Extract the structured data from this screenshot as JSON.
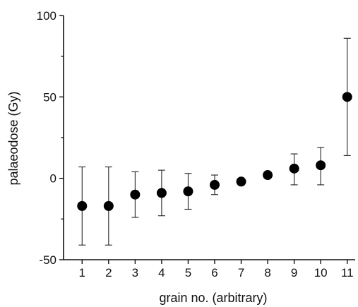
{
  "chart_data": {
    "type": "scatter",
    "title": "",
    "xlabel": "grain no. (arbitrary)",
    "ylabel": "palaeodose (Gy)",
    "xlim": [
      0.3,
      11.3
    ],
    "ylim": [
      -50,
      100
    ],
    "x_ticks": [
      1,
      2,
      3,
      4,
      5,
      6,
      7,
      8,
      9,
      10,
      11
    ],
    "y_ticks": [
      -50,
      0,
      50,
      100
    ],
    "grid": false,
    "legend": "none",
    "marker_color": "#000000",
    "points": [
      {
        "x": 1,
        "y": -17,
        "err_low": -41,
        "err_high": 7
      },
      {
        "x": 2,
        "y": -17,
        "err_low": -41,
        "err_high": 7
      },
      {
        "x": 3,
        "y": -10,
        "err_low": -24,
        "err_high": 4
      },
      {
        "x": 4,
        "y": -9,
        "err_low": -23,
        "err_high": 5
      },
      {
        "x": 5,
        "y": -8,
        "err_low": -19,
        "err_high": 3
      },
      {
        "x": 6,
        "y": -4,
        "err_low": -10,
        "err_high": 2
      },
      {
        "x": 7,
        "y": -2,
        "err_low": -3,
        "err_high": -1
      },
      {
        "x": 8,
        "y": 2,
        "err_low": 1,
        "err_high": 3
      },
      {
        "x": 9,
        "y": 6,
        "err_low": -4,
        "err_high": 15
      },
      {
        "x": 10,
        "y": 8,
        "err_low": -4,
        "err_high": 19
      },
      {
        "x": 11,
        "y": 50,
        "err_low": 14,
        "err_high": 86
      }
    ]
  }
}
